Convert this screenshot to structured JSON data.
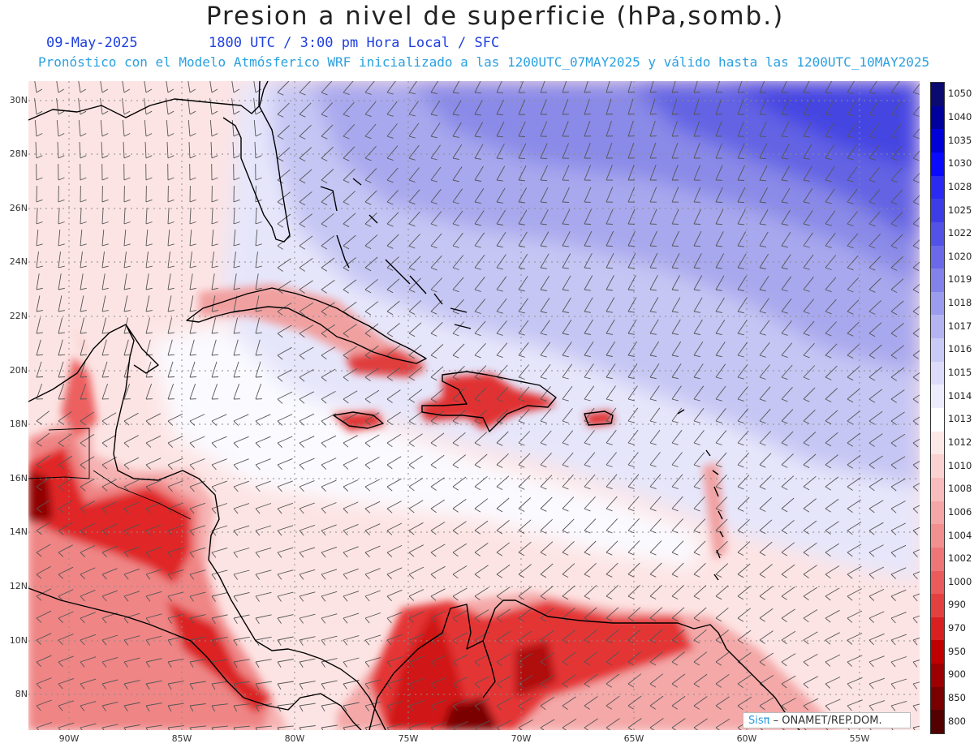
{
  "title": "Presion a nivel de superficie (hPa,somb.)",
  "subtitle": {
    "date": "09-May-2025",
    "time": "1800 UTC / 3:00 pm Hora Local / SFC",
    "forecast": "Pronóstico con el Modelo Atmósferico WRF inicializado a las 1200UTC_07MAY2025 y válido hasta las  1200UTC_10MAY2025"
  },
  "map": {
    "lat_labels": [
      "30N",
      "28N",
      "26N",
      "24N",
      "22N",
      "20N",
      "18N",
      "16N",
      "14N",
      "12N",
      "10N",
      "8N"
    ],
    "lon_labels": [
      "90W",
      "85W",
      "80W",
      "75W",
      "70W",
      "65W",
      "60W",
      "55W"
    ],
    "lat_values": [
      30,
      28,
      26,
      24,
      22,
      20,
      18,
      16,
      14,
      12,
      10,
      8
    ],
    "lon_values": [
      90,
      85,
      80,
      75,
      70,
      65,
      60,
      55
    ]
  },
  "colorbar": {
    "labels": [
      "1050",
      "1040",
      "1035",
      "1030",
      "1028",
      "1025",
      "1022",
      "1020",
      "1019",
      "1018",
      "1017",
      "1016",
      "1015",
      "1014",
      "1013",
      "1012",
      "1010",
      "1008",
      "1006",
      "1004",
      "1002",
      "1000",
      "990",
      "970",
      "950",
      "900",
      "850",
      "800"
    ],
    "colors": [
      "#0a0a70",
      "#00009c",
      "#0000d8",
      "#0a0aff",
      "#2a2af2",
      "#3d3de8",
      "#5252e6",
      "#6a6ae8",
      "#8282ea",
      "#9c9cee",
      "#b4b4f2",
      "#cacaf6",
      "#dcdcfa",
      "#ececfc",
      "#ffffff",
      "#fde8e8",
      "#fbd2d2",
      "#f8bcbc",
      "#f5a6a6",
      "#f29090",
      "#ee7676",
      "#ea5c5c",
      "#e44040",
      "#d82020",
      "#c00000",
      "#9c0000",
      "#7a0000",
      "#520000"
    ]
  },
  "credit": {
    "sis": "Sisπ",
    "rest": " – ONAMET/REP.DOM."
  }
}
